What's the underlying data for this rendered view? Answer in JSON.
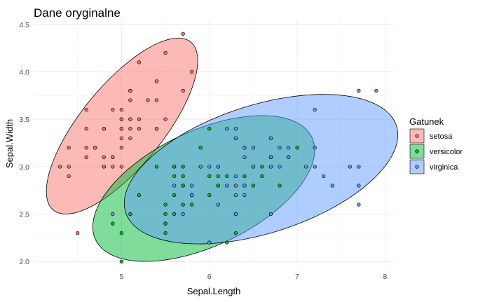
{
  "chart_data": {
    "type": "scatter",
    "title": "Dane oryginalne",
    "xlabel": "Sepal.Length",
    "ylabel": "Sepal.Width",
    "xlim": [
      4.0,
      8.1
    ],
    "ylim": [
      1.95,
      4.55
    ],
    "x_ticks": [
      5,
      6,
      7,
      8
    ],
    "y_ticks": [
      2.0,
      2.5,
      3.0,
      3.5,
      4.0,
      4.5
    ],
    "x_tick_labels": [
      "5",
      "6",
      "7",
      "8"
    ],
    "y_tick_labels": [
      "2.0",
      "2.5",
      "3.0",
      "3.5",
      "4.0",
      "4.5"
    ],
    "grid": true,
    "legend": {
      "title": "Gatunek",
      "position": "right"
    },
    "series": [
      {
        "name": "setosa",
        "color": "#F8766D",
        "ellipse": {
          "cx": 5.006,
          "cy": 3.428,
          "sx": 0.352,
          "sy": 0.379,
          "r": 0.743
        },
        "points": [
          [
            5.1,
            3.5
          ],
          [
            4.9,
            3.0
          ],
          [
            4.7,
            3.2
          ],
          [
            4.6,
            3.1
          ],
          [
            5.0,
            3.6
          ],
          [
            5.4,
            3.9
          ],
          [
            4.6,
            3.4
          ],
          [
            5.0,
            3.4
          ],
          [
            4.4,
            2.9
          ],
          [
            4.9,
            3.1
          ],
          [
            5.4,
            3.7
          ],
          [
            4.8,
            3.4
          ],
          [
            4.8,
            3.0
          ],
          [
            4.3,
            3.0
          ],
          [
            5.8,
            4.0
          ],
          [
            5.7,
            4.4
          ],
          [
            5.4,
            3.9
          ],
          [
            5.1,
            3.5
          ],
          [
            5.7,
            3.8
          ],
          [
            5.1,
            3.8
          ],
          [
            5.4,
            3.4
          ],
          [
            5.1,
            3.7
          ],
          [
            4.6,
            3.6
          ],
          [
            5.1,
            3.3
          ],
          [
            4.8,
            3.4
          ],
          [
            5.0,
            3.0
          ],
          [
            5.0,
            3.4
          ],
          [
            5.2,
            3.5
          ],
          [
            5.2,
            3.4
          ],
          [
            4.7,
            3.2
          ],
          [
            4.8,
            3.1
          ],
          [
            5.4,
            3.4
          ],
          [
            5.2,
            4.1
          ],
          [
            5.5,
            4.2
          ],
          [
            4.9,
            3.1
          ],
          [
            5.0,
            3.2
          ],
          [
            5.5,
            3.5
          ],
          [
            4.9,
            3.6
          ],
          [
            4.4,
            3.0
          ],
          [
            5.1,
            3.4
          ],
          [
            5.0,
            3.5
          ],
          [
            4.5,
            2.3
          ],
          [
            4.4,
            3.2
          ],
          [
            5.0,
            3.5
          ],
          [
            5.1,
            3.8
          ],
          [
            4.8,
            3.0
          ],
          [
            5.1,
            3.8
          ],
          [
            4.6,
            3.2
          ],
          [
            5.3,
            3.7
          ],
          [
            5.0,
            3.3
          ]
        ]
      },
      {
        "name": "versicolor",
        "color": "#00BA38",
        "ellipse": {
          "cx": 5.936,
          "cy": 2.77,
          "sx": 0.516,
          "sy": 0.314,
          "r": 0.526
        },
        "points": [
          [
            7.0,
            3.2
          ],
          [
            6.4,
            3.2
          ],
          [
            6.9,
            3.1
          ],
          [
            5.5,
            2.3
          ],
          [
            6.5,
            2.8
          ],
          [
            5.7,
            2.8
          ],
          [
            6.3,
            3.3
          ],
          [
            4.9,
            2.4
          ],
          [
            6.6,
            2.9
          ],
          [
            5.2,
            2.7
          ],
          [
            5.0,
            2.0
          ],
          [
            5.9,
            3.0
          ],
          [
            6.0,
            2.2
          ],
          [
            6.1,
            2.9
          ],
          [
            5.6,
            2.9
          ],
          [
            6.7,
            3.1
          ],
          [
            5.6,
            3.0
          ],
          [
            5.8,
            2.7
          ],
          [
            6.2,
            2.2
          ],
          [
            5.6,
            2.5
          ],
          [
            5.9,
            3.2
          ],
          [
            6.1,
            2.8
          ],
          [
            6.3,
            2.5
          ],
          [
            6.1,
            2.8
          ],
          [
            6.4,
            2.9
          ],
          [
            6.6,
            3.0
          ],
          [
            6.8,
            2.8
          ],
          [
            6.7,
            3.0
          ],
          [
            6.0,
            2.9
          ],
          [
            5.7,
            2.6
          ],
          [
            5.5,
            2.4
          ],
          [
            5.5,
            2.4
          ],
          [
            5.8,
            2.7
          ],
          [
            6.0,
            2.7
          ],
          [
            5.4,
            3.0
          ],
          [
            6.0,
            3.4
          ],
          [
            6.7,
            3.1
          ],
          [
            6.3,
            2.3
          ],
          [
            5.6,
            3.0
          ],
          [
            5.5,
            2.5
          ],
          [
            5.5,
            2.6
          ],
          [
            6.1,
            3.0
          ],
          [
            5.8,
            2.6
          ],
          [
            5.0,
            2.3
          ],
          [
            5.6,
            2.7
          ],
          [
            5.7,
            3.0
          ],
          [
            5.7,
            2.9
          ],
          [
            6.2,
            2.9
          ],
          [
            5.1,
            2.5
          ],
          [
            5.7,
            2.8
          ]
        ]
      },
      {
        "name": "virginica",
        "color": "#619CFF",
        "ellipse": {
          "cx": 6.588,
          "cy": 2.974,
          "sx": 0.636,
          "sy": 0.322,
          "r": 0.457
        },
        "points": [
          [
            6.3,
            3.3
          ],
          [
            5.8,
            2.7
          ],
          [
            7.1,
            3.0
          ],
          [
            6.3,
            2.9
          ],
          [
            6.5,
            3.0
          ],
          [
            7.6,
            3.0
          ],
          [
            4.9,
            2.5
          ],
          [
            7.3,
            2.9
          ],
          [
            6.7,
            2.5
          ],
          [
            7.2,
            3.6
          ],
          [
            6.5,
            3.2
          ],
          [
            6.4,
            2.7
          ],
          [
            6.8,
            3.0
          ],
          [
            5.7,
            2.5
          ],
          [
            5.8,
            2.8
          ],
          [
            6.4,
            3.2
          ],
          [
            6.5,
            3.0
          ],
          [
            7.7,
            3.8
          ],
          [
            7.7,
            2.6
          ],
          [
            6.0,
            2.2
          ],
          [
            6.9,
            3.2
          ],
          [
            5.6,
            2.8
          ],
          [
            7.7,
            2.8
          ],
          [
            6.3,
            2.7
          ],
          [
            6.7,
            3.3
          ],
          [
            7.2,
            3.2
          ],
          [
            6.2,
            2.8
          ],
          [
            6.1,
            3.0
          ],
          [
            6.4,
            2.8
          ],
          [
            7.2,
            3.0
          ],
          [
            7.4,
            2.8
          ],
          [
            7.9,
            3.8
          ],
          [
            6.4,
            2.8
          ],
          [
            6.3,
            2.8
          ],
          [
            6.1,
            2.6
          ],
          [
            7.7,
            3.0
          ],
          [
            6.3,
            3.4
          ],
          [
            6.4,
            3.1
          ],
          [
            6.0,
            3.0
          ],
          [
            6.9,
            3.1
          ],
          [
            6.7,
            3.1
          ],
          [
            6.9,
            3.1
          ],
          [
            5.8,
            2.7
          ],
          [
            6.8,
            3.2
          ],
          [
            6.7,
            3.3
          ],
          [
            6.7,
            3.0
          ],
          [
            6.3,
            2.5
          ],
          [
            6.5,
            3.0
          ],
          [
            6.2,
            3.4
          ],
          [
            5.9,
            3.0
          ]
        ]
      }
    ]
  }
}
